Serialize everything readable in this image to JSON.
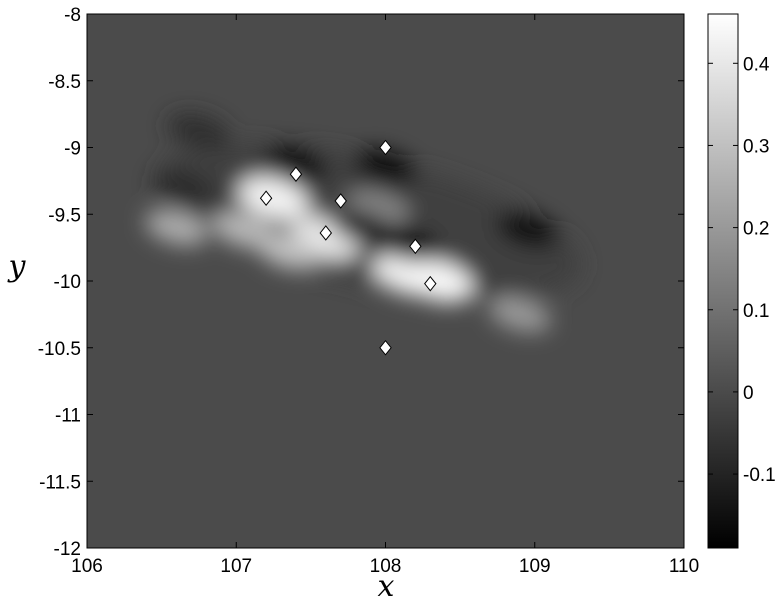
{
  "chart_data": {
    "type": "heatmap",
    "title": "",
    "xlabel": "x",
    "ylabel": "y",
    "xlim": [
      106,
      110
    ],
    "ylim": [
      -12,
      -8
    ],
    "x_ticks": [
      106,
      107,
      108,
      109,
      110
    ],
    "x_tick_labels": [
      "106",
      "107",
      "108",
      "109",
      "110"
    ],
    "y_ticks": [
      -8,
      -8.5,
      -9,
      -9.5,
      -10,
      -10.5,
      -11,
      -11.5,
      -12
    ],
    "y_tick_labels": [
      "-8",
      "-8.5",
      "-9",
      "-9.5",
      "-10",
      "-10.5",
      "-11",
      "-11.5",
      "-12"
    ],
    "colormap": "gray",
    "colorbar": {
      "range": [
        -0.19,
        0.46
      ],
      "ticks": [
        0.4,
        0.3,
        0.2,
        0.1,
        0,
        -0.1
      ],
      "tick_labels": [
        "0.4",
        "0.3",
        "0.2",
        "0.1",
        "0",
        "-0.1"
      ]
    },
    "background_value": 0.0,
    "field_features": [
      {
        "x": 107.05,
        "y": -9.62,
        "value": 0.28
      },
      {
        "x": 107.25,
        "y": -9.38,
        "value": 0.43
      },
      {
        "x": 107.6,
        "y": -9.68,
        "value": 0.4
      },
      {
        "x": 108.15,
        "y": -9.95,
        "value": 0.42
      },
      {
        "x": 108.35,
        "y": -10.0,
        "value": 0.44
      },
      {
        "x": 106.6,
        "y": -9.6,
        "value": 0.25
      },
      {
        "x": 107.35,
        "y": -9.78,
        "value": 0.3
      },
      {
        "x": 108.9,
        "y": -10.25,
        "value": 0.2
      },
      {
        "x": 107.95,
        "y": -9.45,
        "value": 0.15
      },
      {
        "x": 107.4,
        "y": -9.12,
        "value": -0.17
      },
      {
        "x": 108.0,
        "y": -9.15,
        "value": -0.15
      },
      {
        "x": 107.85,
        "y": -9.6,
        "value": -0.1
      },
      {
        "x": 108.15,
        "y": -9.72,
        "value": -0.19
      },
      {
        "x": 108.95,
        "y": -9.62,
        "value": -0.15
      },
      {
        "x": 106.75,
        "y": -8.88,
        "value": -0.07
      },
      {
        "x": 106.65,
        "y": -9.3,
        "value": -0.08
      }
    ],
    "markers": [
      {
        "x": 108.0,
        "y": -9.0,
        "fill": "#ffffff"
      },
      {
        "x": 107.4,
        "y": -9.2,
        "fill": "#ffffff"
      },
      {
        "x": 107.2,
        "y": -9.38,
        "fill": "#ffffff"
      },
      {
        "x": 107.7,
        "y": -9.4,
        "fill": "#ffffff"
      },
      {
        "x": 107.6,
        "y": -9.64,
        "fill": "#ffffff"
      },
      {
        "x": 108.2,
        "y": -9.74,
        "fill": "#ffffff"
      },
      {
        "x": 108.3,
        "y": -10.02,
        "fill": "#ffffff"
      },
      {
        "x": 108.0,
        "y": -10.5,
        "fill": "#ffffff"
      }
    ]
  }
}
